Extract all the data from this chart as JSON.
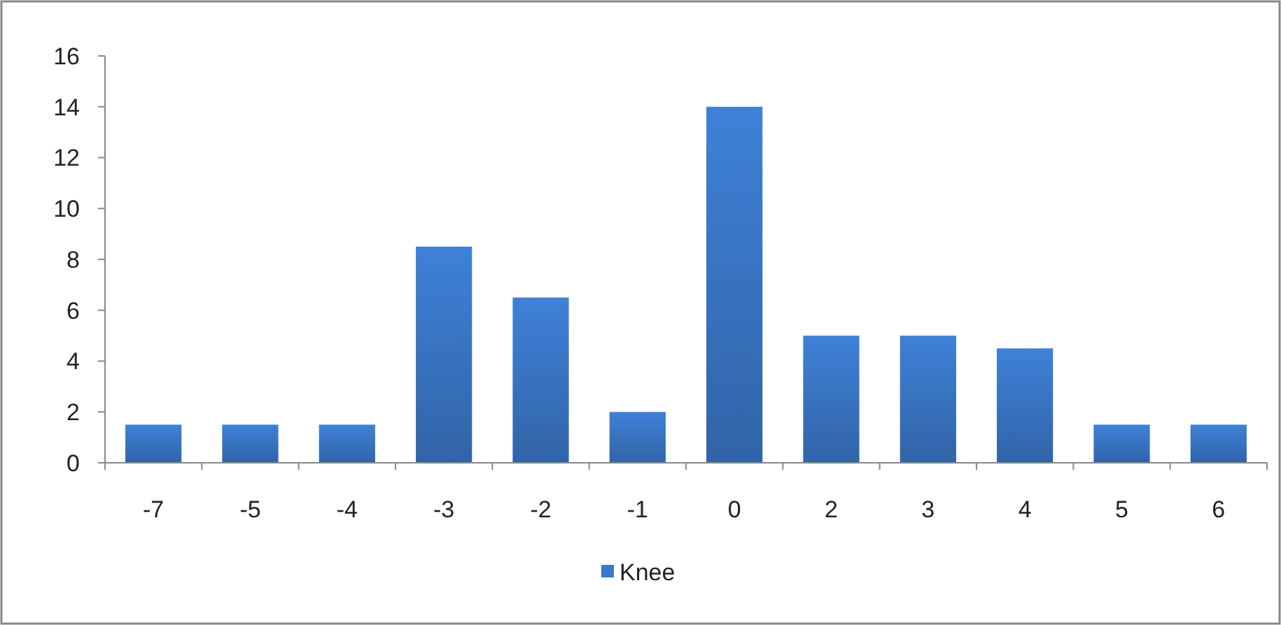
{
  "chart_data": {
    "type": "bar",
    "categories": [
      "-7",
      "-5",
      "-4",
      "-3",
      "-2",
      "-1",
      "0",
      "2",
      "3",
      "4",
      "5",
      "6"
    ],
    "series": [
      {
        "name": "Knee",
        "color": "#3a78c8",
        "values": [
          1.5,
          1.5,
          1.5,
          8.5,
          6.5,
          2,
          14,
          5,
          5,
          4.5,
          1.5,
          1.5
        ]
      }
    ],
    "ylim": [
      0,
      16
    ],
    "yticks": [
      0,
      2,
      4,
      6,
      8,
      10,
      12,
      14,
      16
    ],
    "grid": false,
    "legend": "bottom"
  }
}
